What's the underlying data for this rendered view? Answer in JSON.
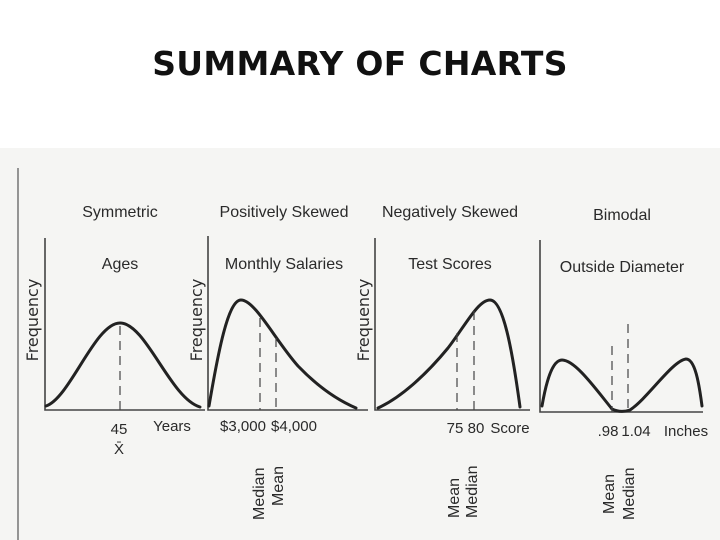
{
  "slide": {
    "title": "SUMMARY OF CHARTS"
  },
  "panels": [
    {
      "id": "symmetric",
      "shape": "Symmetric",
      "variable": "Ages",
      "ylabel": "Frequency",
      "xunit": "Years",
      "ticks": [
        "45",
        "X̄"
      ],
      "legend": []
    },
    {
      "id": "positive",
      "shape": "Positively Skewed",
      "variable": "Monthly Salaries",
      "ylabel": "Frequency",
      "xunit": "",
      "ticks": [
        "$3,000",
        "$4,000"
      ],
      "legend": [
        "Median",
        "Mean"
      ]
    },
    {
      "id": "negative",
      "shape": "Negatively Skewed",
      "variable": "Test Scores",
      "ylabel": "Frequency",
      "xunit": "Score",
      "ticks": [
        "75",
        "80"
      ],
      "legend": [
        "Mean",
        "Median"
      ]
    },
    {
      "id": "bimodal",
      "shape": "Bimodal",
      "variable": "Outside Diameter",
      "ylabel": "",
      "xunit": "Inches",
      "ticks": [
        ".98",
        "1.04"
      ],
      "legend": [
        "Mean",
        "Median"
      ]
    }
  ]
}
